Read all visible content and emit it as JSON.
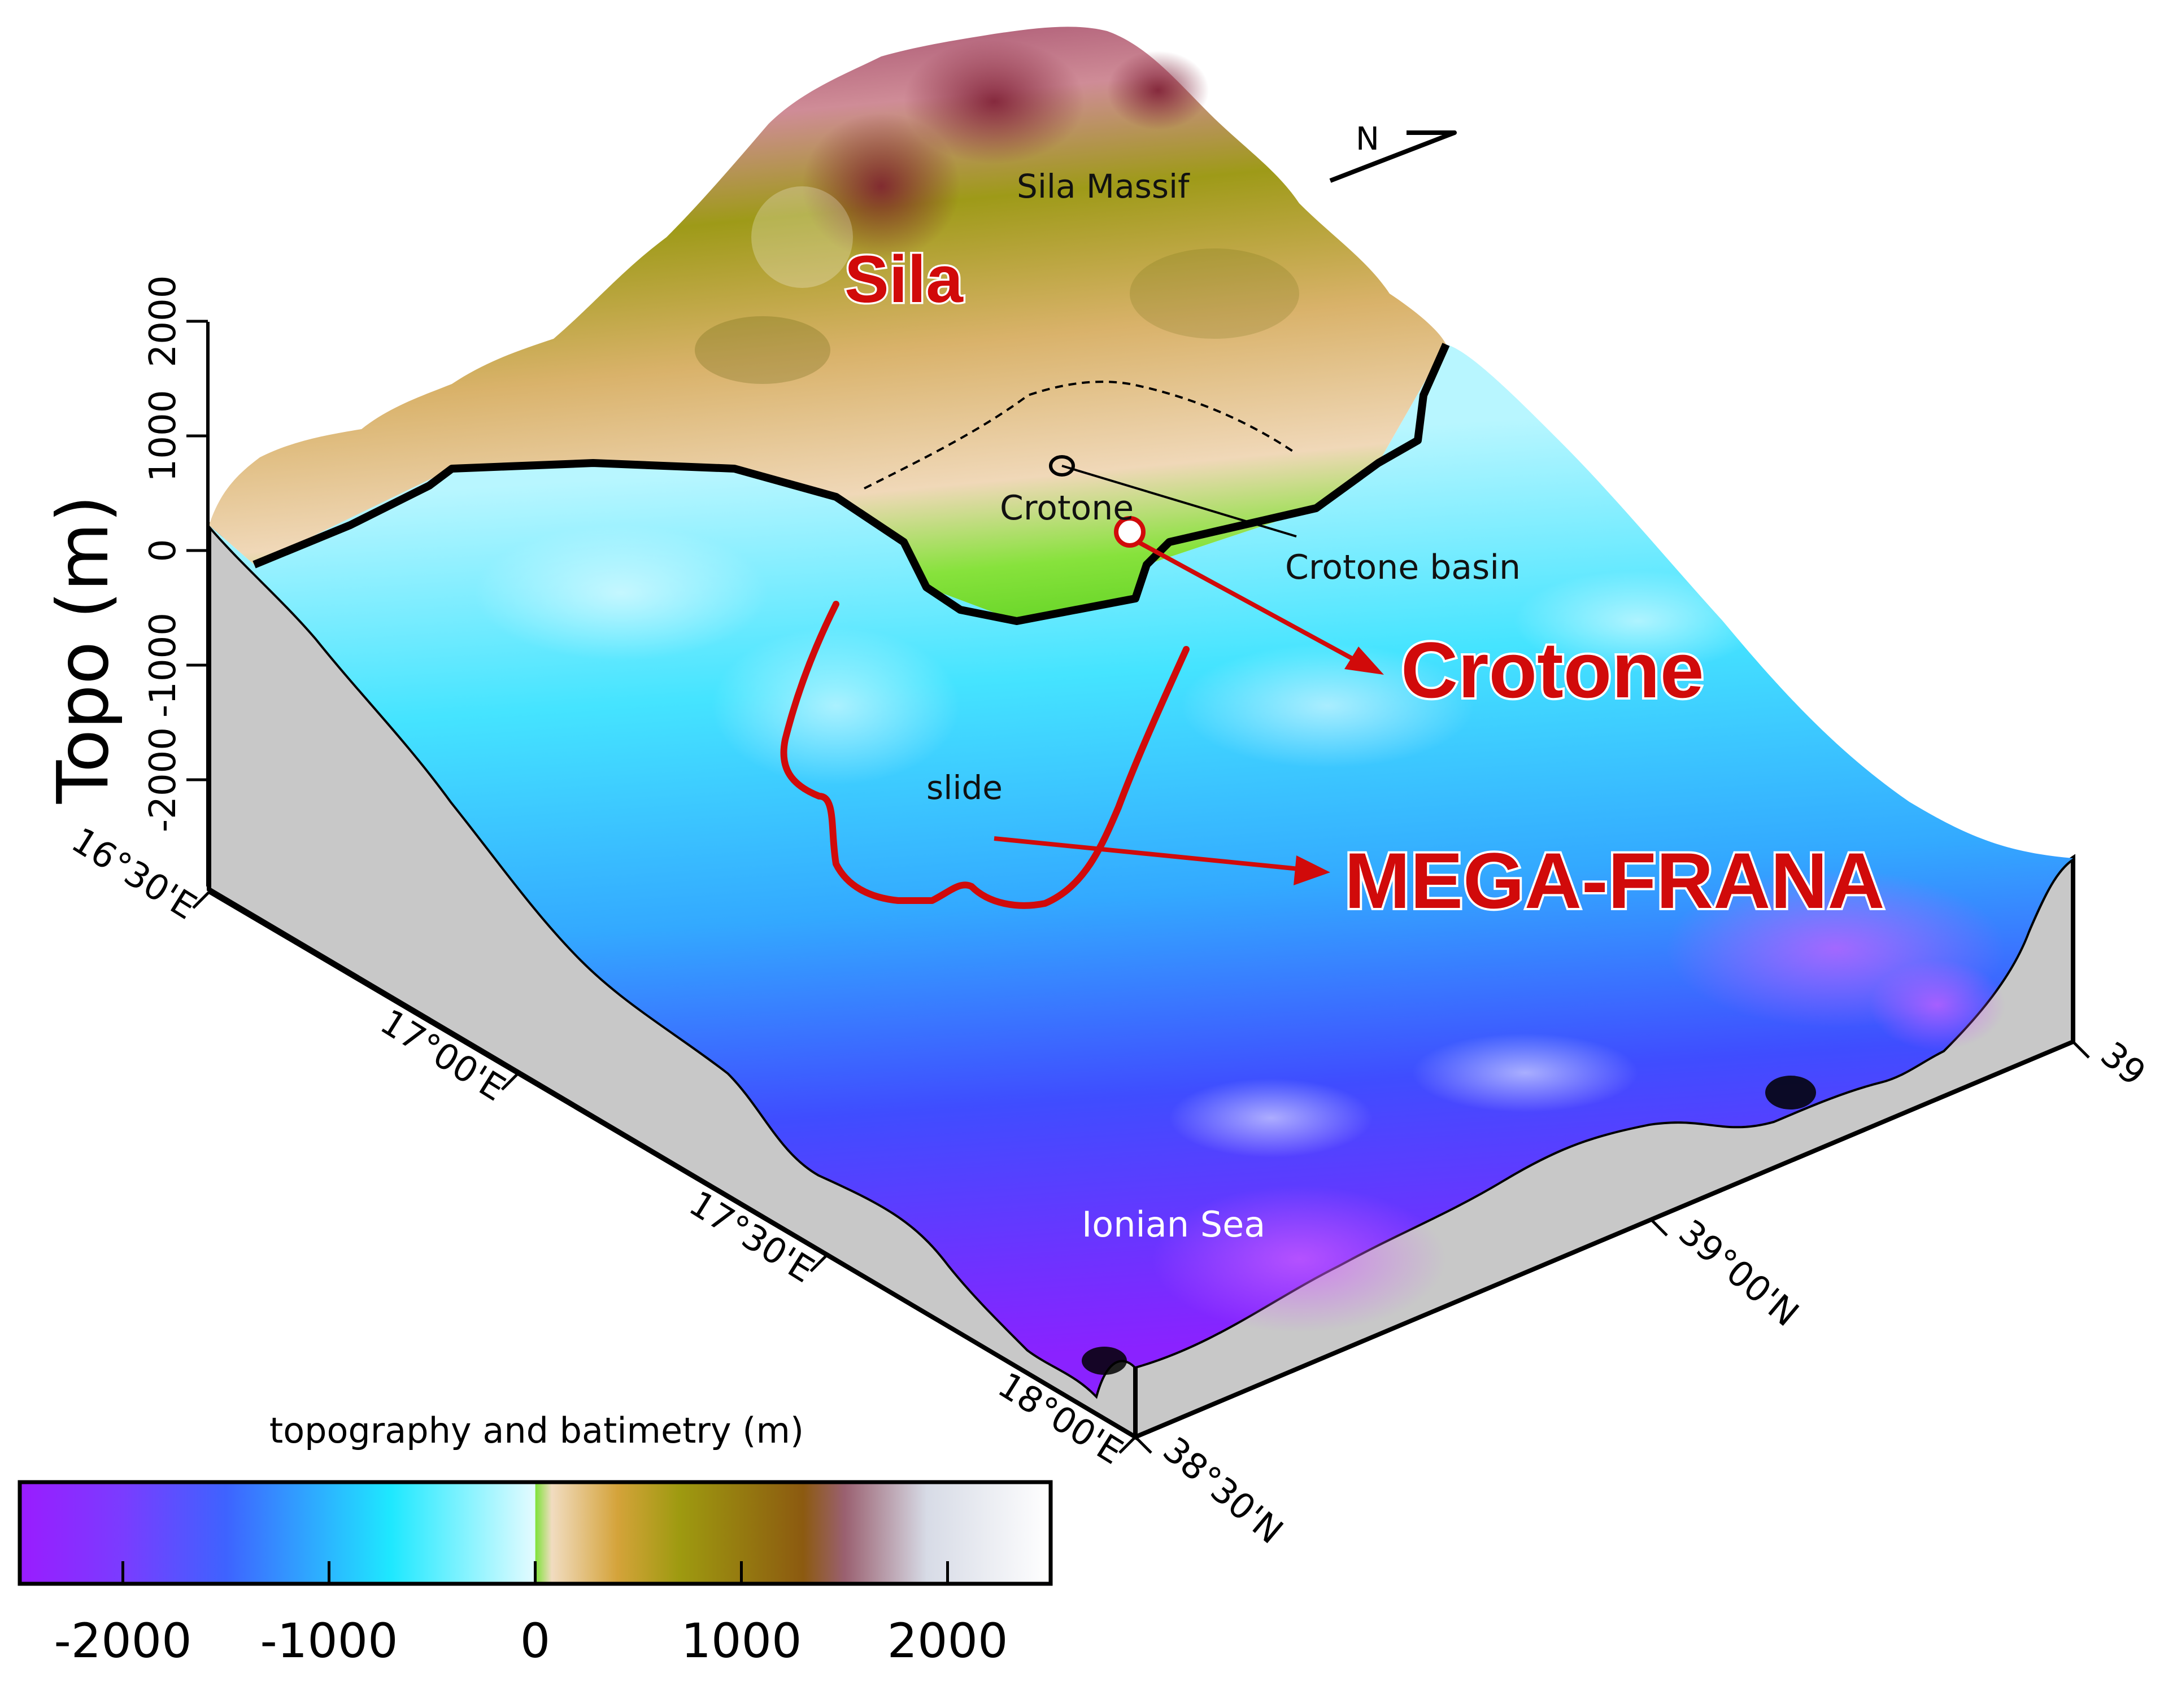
{
  "labels": {
    "sila_massif": "Sila Massif",
    "sila": "Sila",
    "crotone_small": "Crotone",
    "crotone_basin": "Crotone basin",
    "crotone_big": "Crotone",
    "slide": "slide",
    "mega_frana": "MEGA-FRANA",
    "ionian_sea": "Ionian Sea",
    "north": "N"
  },
  "vertical_axis": {
    "title": "Topo (m)",
    "ticks": [
      "-2000",
      "-1000",
      "0",
      "1000",
      "2000"
    ]
  },
  "longitude_axis": {
    "ticks": [
      "16°30'E",
      "17°00'E",
      "17°30'E",
      "18°00'E"
    ]
  },
  "latitude_axis": {
    "ticks": [
      "38°30'N",
      "39°00'N",
      "39"
    ]
  },
  "colorbar": {
    "title": "topography and batimetry (m)",
    "ticks": [
      "-2000",
      "-1000",
      "0",
      "1000",
      "2000"
    ],
    "range": [
      -2500,
      2500
    ],
    "stops": [
      {
        "value": -2500,
        "color": "#9a1cff"
      },
      {
        "value": -2000,
        "color": "#7a3cff"
      },
      {
        "value": -1500,
        "color": "#3e63ff"
      },
      {
        "value": -1000,
        "color": "#2bb7ff"
      },
      {
        "value": -700,
        "color": "#1ee8ff"
      },
      {
        "value": -300,
        "color": "#8ff4ff"
      },
      {
        "value": 0,
        "color": "#e4fbff"
      },
      {
        "value": 1,
        "color": "#7fe23a"
      },
      {
        "value": 80,
        "color": "#f1dcc0"
      },
      {
        "value": 400,
        "color": "#d4a33a"
      },
      {
        "value": 700,
        "color": "#9e9a10"
      },
      {
        "value": 1300,
        "color": "#8c5a10"
      },
      {
        "value": 1500,
        "color": "#9a6070"
      },
      {
        "value": 1900,
        "color": "#d7dbe6"
      },
      {
        "value": 2500,
        "color": "#ffffff"
      }
    ]
  },
  "colors": {
    "annotation_red": "#d10a0a",
    "coast": "#000000",
    "box_side": "#c8c8c8"
  }
}
